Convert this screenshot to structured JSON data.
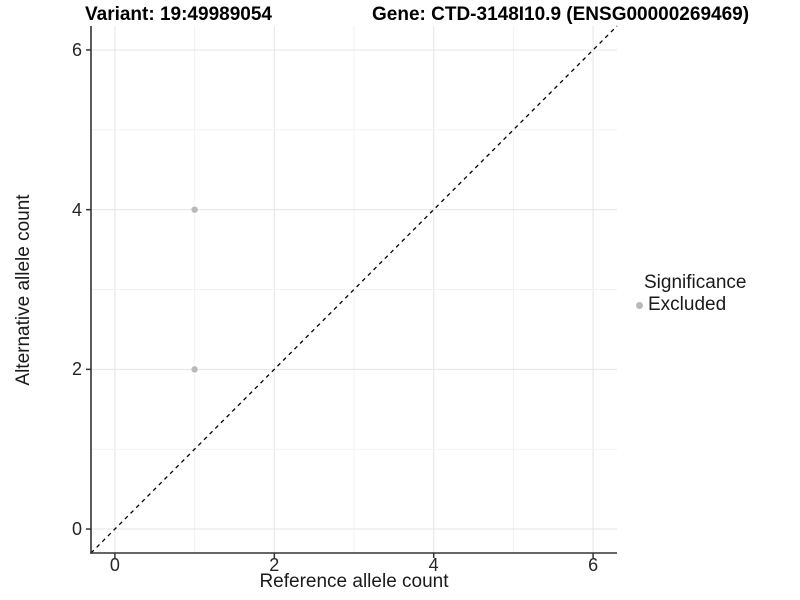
{
  "header": {
    "title_left": "Variant: 19:49989054",
    "title_right": "Gene: CTD-3148I10.9 (ENSG00000269469)"
  },
  "axes": {
    "x_label": "Reference allele count",
    "y_label": "Alternative allele count"
  },
  "legend": {
    "title": "Significance",
    "items": [
      {
        "label": "Excluded",
        "color": "#b9b9b9"
      }
    ]
  },
  "colors": {
    "point": "#b9b9b9",
    "axis_line": "#333333",
    "tick_mark": "#333333",
    "grid_major": "#e5e5e5",
    "grid_minor": "#f2f2f2",
    "reference_line": "#000000",
    "text": "#000000"
  },
  "chart_data": {
    "type": "scatter",
    "title": "Variant: 19:49989054    Gene: CTD-3148I10.9 (ENSG00000269469)",
    "xlabel": "Reference allele count",
    "ylabel": "Alternative allele count",
    "xlim": [
      -0.3,
      6.3
    ],
    "ylim": [
      -0.3,
      6.3
    ],
    "x_ticks": [
      0,
      2,
      4,
      6
    ],
    "y_ticks": [
      0,
      2,
      4,
      6
    ],
    "grid": "light gray gridlines at every integer 0-6 (major on even, minor on odd)",
    "legend_position": "right",
    "series": [
      {
        "name": "Excluded",
        "color": "#b9b9b9",
        "points": [
          {
            "x": 1,
            "y": 4
          },
          {
            "x": 1,
            "y": 2
          }
        ]
      }
    ],
    "reference_line": {
      "type": "identity y=x",
      "style": "dashed",
      "color": "#000000"
    }
  }
}
